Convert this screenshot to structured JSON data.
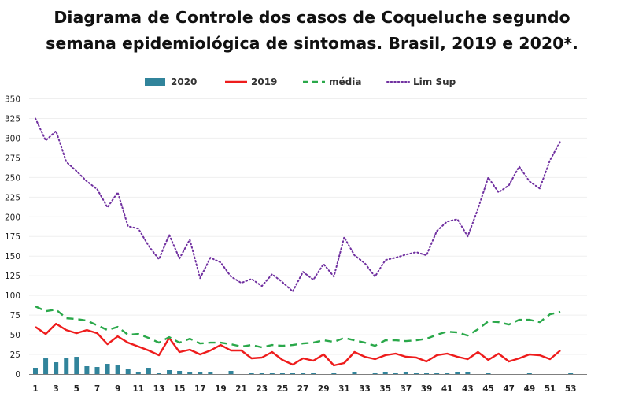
{
  "title_line1": "Diagrama de Controle dos casos de Coqueluche segundo",
  "title_line2": "semana epidemiológica de sintomas. Brasil, 2019 e 2020*.",
  "chart_data": {
    "type": "bar+line",
    "title": "Diagrama de Controle dos casos de Coqueluche segundo semana epidemiológica de sintomas. Brasil, 2019 e 2020*.",
    "xlabel": "",
    "ylabel": "",
    "ylim": [
      0,
      350
    ],
    "yticks": [
      0,
      25,
      50,
      75,
      100,
      125,
      150,
      175,
      200,
      225,
      250,
      275,
      300,
      325,
      350
    ],
    "xticks": [
      1,
      3,
      5,
      7,
      9,
      11,
      13,
      15,
      17,
      19,
      21,
      23,
      25,
      27,
      29,
      31,
      33,
      35,
      37,
      39,
      41,
      43,
      45,
      47,
      49,
      51,
      53
    ],
    "weeks": [
      1,
      2,
      3,
      4,
      5,
      6,
      7,
      8,
      9,
      10,
      11,
      12,
      13,
      14,
      15,
      16,
      17,
      18,
      19,
      20,
      21,
      22,
      23,
      24,
      25,
      26,
      27,
      28,
      29,
      30,
      31,
      32,
      33,
      34,
      35,
      36,
      37,
      38,
      39,
      40,
      41,
      42,
      43,
      44,
      45,
      46,
      47,
      48,
      49,
      50,
      51,
      52,
      53
    ],
    "legend_position": "top",
    "series": [
      {
        "name": "2020",
        "kind": "bar",
        "color": "#31849b",
        "values": [
          8,
          20,
          15,
          21,
          22,
          10,
          9,
          13,
          11,
          6,
          3,
          8,
          1,
          5,
          4,
          3,
          2,
          2,
          0,
          4,
          0,
          1,
          1,
          1,
          1,
          1,
          1,
          1,
          0,
          1,
          0,
          2,
          0,
          1,
          2,
          1,
          3,
          1,
          1,
          1,
          1,
          2,
          2,
          0,
          1,
          0,
          0,
          0,
          1,
          0,
          0,
          0,
          1
        ]
      },
      {
        "name": "2019",
        "kind": "line",
        "style": "solid",
        "color": "#ee1c1c",
        "values": [
          60,
          51,
          64,
          56,
          52,
          56,
          52,
          38,
          48,
          40,
          35,
          30,
          24,
          46,
          28,
          31,
          25,
          30,
          37,
          30,
          30,
          20,
          21,
          28,
          18,
          12,
          20,
          17,
          25,
          11,
          14,
          28,
          22,
          19,
          24,
          26,
          22,
          21,
          16,
          24,
          26,
          22,
          19,
          28,
          18,
          26,
          16,
          20,
          25,
          24,
          19,
          30
        ]
      },
      {
        "name": "média",
        "kind": "line",
        "style": "dashed",
        "color": "#2aa84a",
        "values": [
          86,
          80,
          82,
          71,
          70,
          68,
          62,
          56,
          60,
          50,
          51,
          46,
          40,
          47,
          40,
          45,
          39,
          40,
          40,
          38,
          35,
          37,
          34,
          37,
          36,
          37,
          39,
          40,
          43,
          41,
          46,
          43,
          40,
          36,
          43,
          43,
          42,
          43,
          45,
          50,
          54,
          53,
          49,
          57,
          67,
          66,
          63,
          69,
          69,
          66,
          76,
          79
        ]
      },
      {
        "name": "Lim Sup",
        "kind": "line",
        "style": "dotted",
        "color": "#7030a0",
        "values": [
          325,
          297,
          309,
          270,
          258,
          245,
          235,
          212,
          231,
          188,
          185,
          163,
          146,
          177,
          147,
          171,
          122,
          148,
          142,
          124,
          116,
          121,
          112,
          127,
          117,
          105,
          130,
          120,
          140,
          124,
          174,
          151,
          141,
          124,
          145,
          148,
          152,
          155,
          151,
          182,
          194,
          197,
          175,
          210,
          250,
          231,
          240,
          264,
          245,
          236,
          272,
          296
        ]
      }
    ]
  }
}
